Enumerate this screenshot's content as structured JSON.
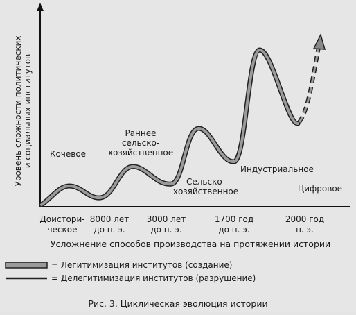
{
  "y_axis": {
    "lines": [
      "Уровень сложности политических",
      "и социальных институтов"
    ]
  },
  "stages": [
    {
      "lines": [
        "Кочевое"
      ]
    },
    {
      "lines": [
        "Раннее",
        "сельско-",
        "хозяйственное"
      ]
    },
    {
      "lines": [
        "Сельско-",
        "хозяйственное"
      ]
    },
    {
      "lines": [
        "Индустриальное"
      ]
    },
    {
      "lines": [
        "Цифровое"
      ]
    }
  ],
  "x_ticks": [
    {
      "lines": [
        "Доистори-",
        "ческое"
      ]
    },
    {
      "lines": [
        "8000 лет",
        "до н. э."
      ]
    },
    {
      "lines": [
        "3000 лет",
        "до н. э."
      ]
    },
    {
      "lines": [
        "1700 год",
        "до н. э."
      ]
    },
    {
      "lines": [
        "2000 год",
        "н. э."
      ]
    }
  ],
  "x_axis": {
    "label": "Усложнение способов производства на протяжении истории"
  },
  "legend": [
    {
      "label": "= Легитимизация институтов (создание)"
    },
    {
      "label": "= Делегитимизация институтов (разрушение)"
    }
  ],
  "caption": "Рис. 3. Циклическая эволюция истории"
}
